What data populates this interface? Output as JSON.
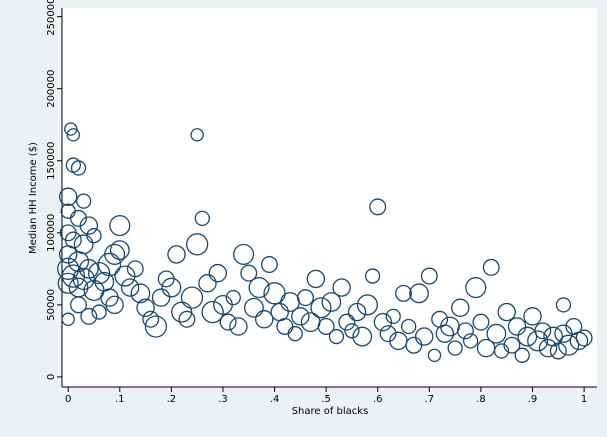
{
  "chart_data": {
    "type": "scatter",
    "x_label": "Share of blacks",
    "y_label": "Median HH Income ($)",
    "color": "#1a476f",
    "xlim": [
      -0.012,
      1.025
    ],
    "ylim": [
      -7000,
      256000
    ],
    "xticks": [
      0,
      {
        "value": 0.1,
        "label": ".1"
      },
      {
        "value": 0.2,
        "label": ".2"
      },
      {
        "value": 0.3,
        "label": ".3"
      },
      {
        "value": 0.4,
        "label": ".4"
      },
      {
        "value": 0.5,
        "label": ".5"
      },
      {
        "value": 0.6,
        "label": ".6"
      },
      {
        "value": 0.7,
        "label": ".7"
      },
      {
        "value": 0.8,
        "label": ".8"
      },
      {
        "value": 0.9,
        "label": ".9"
      },
      1
    ],
    "yticks": [
      0,
      50000,
      100000,
      150000,
      200000,
      250000
    ],
    "x": [
      0.0,
      0.005,
      0.01,
      0.01,
      0.02,
      0.0,
      0.03,
      0.02,
      0.04,
      0.0,
      0.01,
      0.03,
      0.05,
      0.0,
      0.02,
      0.0,
      0.01,
      0.0,
      0.02,
      0.03,
      0.04,
      0.05,
      0.06,
      0.07,
      0.08,
      0.09,
      0.1,
      0.1,
      0.11,
      0.12,
      0.08,
      0.06,
      0.04,
      0.0,
      0.02,
      0.09,
      0.13,
      0.14,
      0.15,
      0.16,
      0.17,
      0.18,
      0.19,
      0.2,
      0.21,
      0.22,
      0.23,
      0.24,
      0.25,
      0.25,
      0.26,
      0.27,
      0.28,
      0.29,
      0.3,
      0.31,
      0.32,
      0.33,
      0.34,
      0.35,
      0.36,
      0.37,
      0.38,
      0.39,
      0.4,
      0.41,
      0.42,
      0.43,
      0.44,
      0.45,
      0.46,
      0.47,
      0.48,
      0.49,
      0.5,
      0.51,
      0.52,
      0.53,
      0.54,
      0.55,
      0.56,
      0.57,
      0.58,
      0.59,
      0.6,
      0.61,
      0.62,
      0.63,
      0.64,
      0.65,
      0.66,
      0.67,
      0.68,
      0.69,
      0.7,
      0.71,
      0.72,
      0.73,
      0.74,
      0.75,
      0.76,
      0.77,
      0.78,
      0.79,
      0.8,
      0.81,
      0.82,
      0.83,
      0.84,
      0.85,
      0.86,
      0.87,
      0.88,
      0.89,
      0.9,
      0.91,
      0.92,
      0.93,
      0.94,
      0.95,
      0.96,
      0.96,
      0.97,
      0.98,
      0.99,
      1.0
    ],
    "values": [
      125000,
      172000,
      168000,
      147000,
      145000,
      115000,
      122000,
      110000,
      105000,
      100000,
      95000,
      92000,
      98000,
      85000,
      80000,
      75000,
      70000,
      65000,
      62000,
      68000,
      75000,
      60000,
      72000,
      66000,
      78000,
      85000,
      105000,
      88000,
      70000,
      62000,
      55000,
      45000,
      42000,
      40000,
      50000,
      50000,
      75000,
      58000,
      48000,
      40000,
      35000,
      55000,
      68000,
      62000,
      85000,
      45000,
      40000,
      55000,
      92000,
      168000,
      110000,
      65000,
      45000,
      72000,
      50000,
      38000,
      55000,
      35000,
      85000,
      72000,
      48000,
      62000,
      40000,
      78000,
      58000,
      45000,
      35000,
      52000,
      30000,
      42000,
      55000,
      38000,
      68000,
      48000,
      35000,
      52000,
      28000,
      62000,
      38000,
      32000,
      45000,
      28000,
      50000,
      70000,
      118000,
      38000,
      30000,
      42000,
      25000,
      58000,
      35000,
      22000,
      58000,
      28000,
      70000,
      15000,
      40000,
      30000,
      35000,
      20000,
      48000,
      32000,
      25000,
      62000,
      38000,
      20000,
      76000,
      30000,
      18000,
      45000,
      22000,
      35000,
      15000,
      28000,
      42000,
      25000,
      32000,
      20000,
      28000,
      18000,
      50000,
      30000,
      22000,
      35000,
      25000,
      27000
    ],
    "sizes": [
      6,
      3,
      3,
      4,
      4,
      4,
      4,
      5,
      6,
      5,
      5,
      7,
      4,
      6,
      8,
      9,
      10,
      8,
      7,
      9,
      7,
      8,
      9,
      7,
      10,
      8,
      8,
      7,
      8,
      6,
      6,
      4,
      5,
      3,
      5,
      6,
      5,
      7,
      6,
      5,
      9,
      6,
      5,
      7,
      6,
      8,
      5,
      9,
      9,
      3,
      4,
      6,
      9,
      6,
      7,
      5,
      4,
      6,
      8,
      5,
      7,
      8,
      6,
      5,
      9,
      6,
      5,
      7,
      4,
      6,
      5,
      7,
      6,
      8,
      5,
      7,
      4,
      6,
      5,
      4,
      6,
      7,
      8,
      4,
      5,
      6,
      5,
      4,
      6,
      5,
      4,
      5,
      7,
      6,
      5,
      3,
      5,
      6,
      7,
      4,
      6,
      5,
      4,
      8,
      5,
      6,
      5,
      7,
      4,
      6,
      5,
      6,
      4,
      7,
      6,
      8,
      5,
      6,
      7,
      5,
      4,
      6,
      8,
      5,
      6,
      5
    ]
  }
}
